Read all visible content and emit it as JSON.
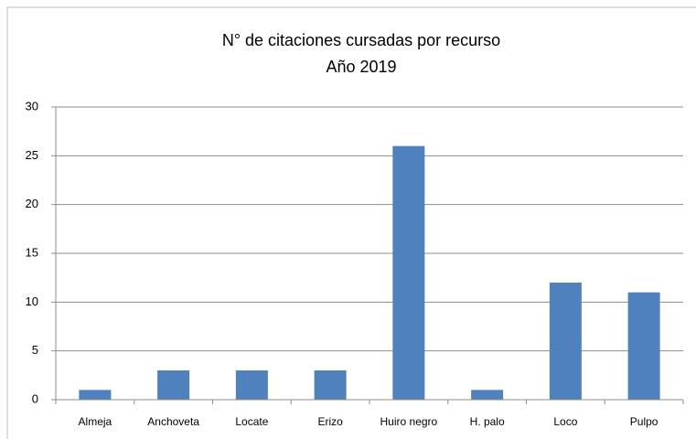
{
  "chart_data": {
    "type": "bar",
    "title": "N° de citaciones cursadas por recurso",
    "subtitle": "Año 2019",
    "categories": [
      "Almeja",
      "Anchoveta",
      "Locate",
      "Erizo",
      "Huiro negro",
      "H. palo",
      "Loco",
      "Pulpo"
    ],
    "values": [
      1,
      3,
      3,
      3,
      26,
      1,
      12,
      11
    ],
    "color": "#4f81bd",
    "ylim": [
      0,
      30
    ],
    "yticks": [
      0,
      5,
      10,
      15,
      20,
      25,
      30
    ],
    "grid": true
  }
}
